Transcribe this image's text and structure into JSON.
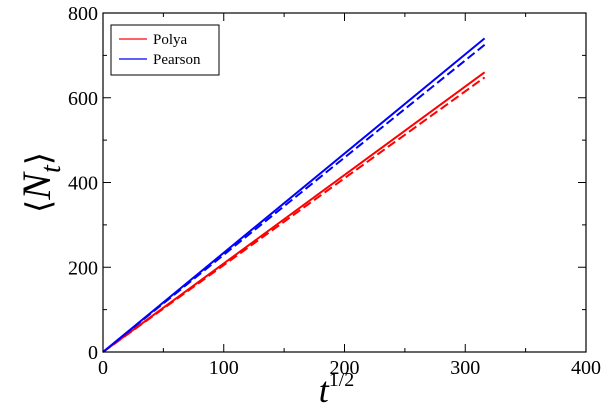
{
  "chart_data": {
    "type": "line",
    "title": "",
    "xlabel": "t^{1/2}",
    "ylabel": "<N_t>",
    "xlim": [
      0,
      400
    ],
    "ylim": [
      0,
      800
    ],
    "x_ticks": [
      "0",
      "100",
      "200",
      "300",
      "400"
    ],
    "y_ticks": [
      "0",
      "200",
      "400",
      "600",
      "800"
    ],
    "grid": false,
    "legend_position": "top-left",
    "series": [
      {
        "name": "Polya",
        "color": "#ff0000",
        "style": "solid",
        "x": [
          0,
          316
        ],
        "y": [
          0,
          660
        ]
      },
      {
        "name": "",
        "color": "#ff0000",
        "style": "dashed",
        "x": [
          0,
          316
        ],
        "y": [
          0,
          648
        ]
      },
      {
        "name": "Pearson",
        "color": "#0000ff",
        "style": "solid",
        "x": [
          0,
          316
        ],
        "y": [
          0,
          740
        ]
      },
      {
        "name": "",
        "color": "#0000ff",
        "style": "dashed",
        "x": [
          0,
          316
        ],
        "y": [
          0,
          725
        ]
      }
    ]
  }
}
